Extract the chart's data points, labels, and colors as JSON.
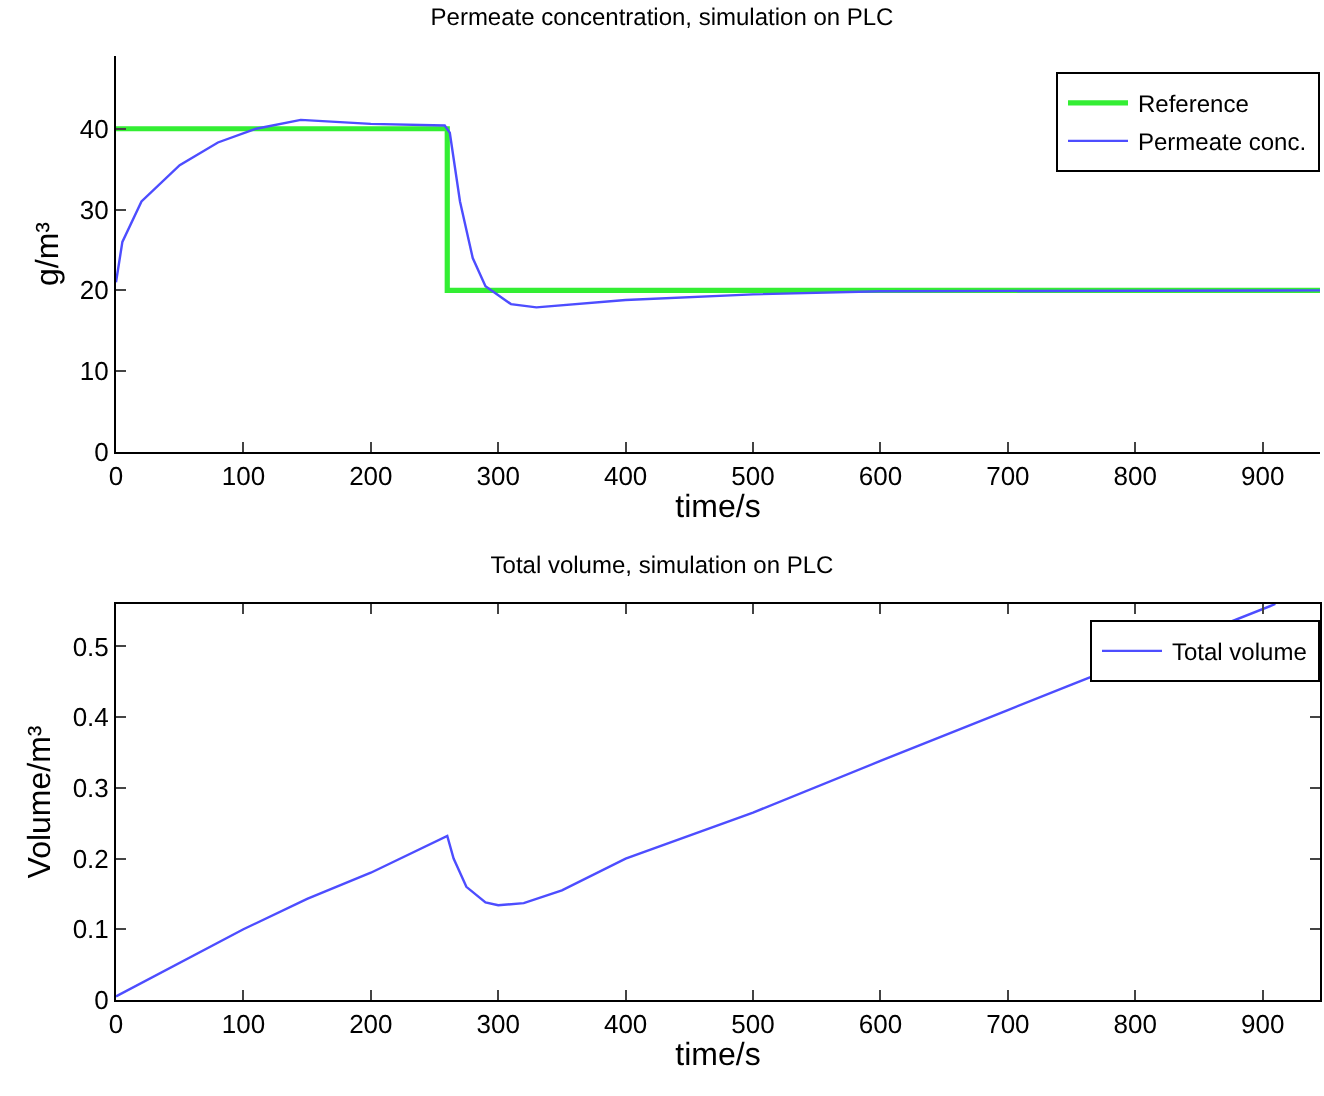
{
  "chart_data": [
    {
      "type": "line",
      "title": "Permeate concentration, simulation on PLC",
      "xlabel": "time/s",
      "ylabel": "g/m³",
      "xlim": [
        0,
        945
      ],
      "xticks": [
        0,
        100,
        200,
        300,
        400,
        500,
        600,
        700,
        800,
        900
      ],
      "ylim": [
        0,
        49
      ],
      "yticks": [
        0,
        10,
        20,
        30,
        40
      ],
      "grid": false,
      "legend": "top right",
      "marker": "none",
      "line_style": "solid",
      "series": [
        {
          "name": "Reference",
          "color": "#33ee33",
          "x": [
            0,
            260,
            260,
            945
          ],
          "values": [
            40,
            40,
            20,
            20
          ]
        },
        {
          "name": "Permeate conc.",
          "color": "#4d4dff",
          "x": [
            0,
            5,
            20,
            50,
            80,
            110,
            145,
            200,
            258,
            262,
            270,
            280,
            290,
            310,
            330,
            400,
            500,
            600,
            945
          ],
          "values": [
            21,
            26,
            31,
            35.5,
            38.3,
            40,
            41.1,
            40.6,
            40.4,
            39.5,
            31,
            24,
            20.5,
            18.3,
            17.9,
            18.8,
            19.5,
            19.9,
            20
          ]
        }
      ]
    },
    {
      "type": "line",
      "title": "Total volume, simulation on PLC",
      "xlabel": "time/s",
      "ylabel": "Volume/m³",
      "xlim": [
        0,
        945
      ],
      "xticks": [
        0,
        100,
        200,
        300,
        400,
        500,
        600,
        700,
        800,
        900
      ],
      "ylim": [
        0,
        0.56
      ],
      "yticks": [
        0,
        0.1,
        0.2,
        0.3,
        0.4,
        0.5
      ],
      "grid": false,
      "legend": "top right",
      "marker": "none",
      "line_style": "solid",
      "series": [
        {
          "name": "Total volume",
          "color": "#4d4dff",
          "x": [
            0,
            100,
            150,
            200,
            260,
            265,
            275,
            290,
            300,
            320,
            350,
            400,
            500,
            600,
            700,
            750,
            910
          ],
          "values": [
            0.005,
            0.1,
            0.143,
            0.18,
            0.232,
            0.2,
            0.16,
            0.138,
            0.134,
            0.137,
            0.155,
            0.2,
            0.265,
            0.338,
            0.41,
            0.446,
            0.56
          ]
        }
      ]
    }
  ]
}
